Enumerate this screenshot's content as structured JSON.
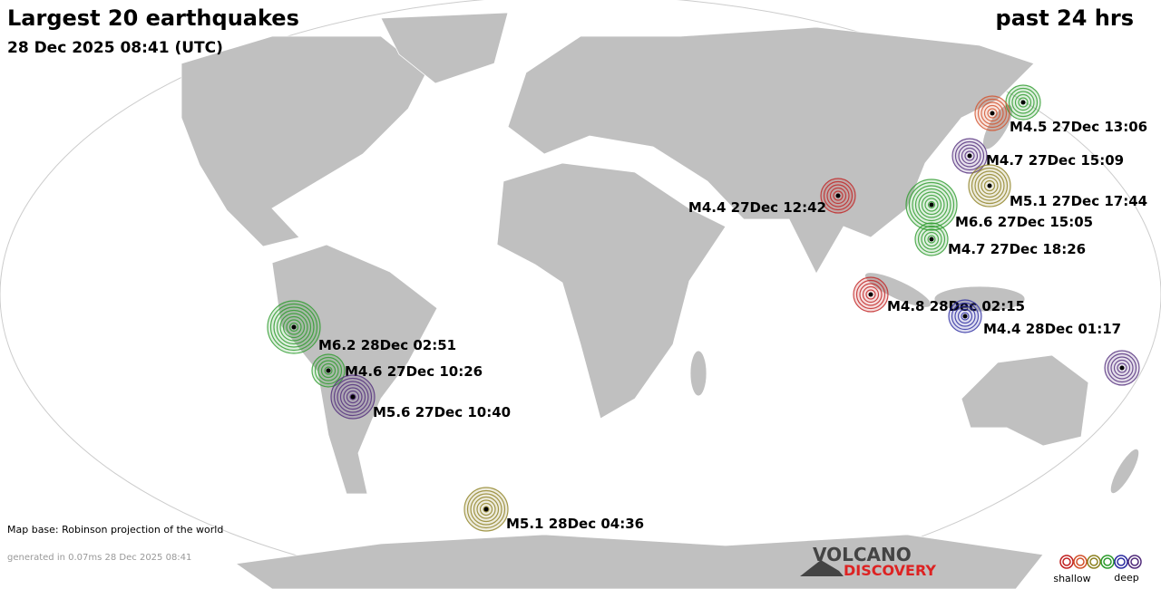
{
  "header": {
    "title": "Largest 20 earthquakes",
    "time": "28 Dec 2025 08:41 (UTC)",
    "period": "past 24 hrs"
  },
  "quakes": [
    {
      "label": "M4.5 27Dec 13:06"
    },
    {
      "label": "M4.7 27Dec 15:09"
    },
    {
      "label": "M5.1 27Dec 17:44"
    },
    {
      "label": "M6.6 27Dec 15:05"
    },
    {
      "label": "M4.7 27Dec 18:26"
    },
    {
      "label": "M4.4 27Dec 12:42"
    },
    {
      "label": "M4.8 28Dec 02:15"
    },
    {
      "label": "M4.4 28Dec 01:17"
    },
    {
      "label": "M6.2 28Dec 02:51"
    },
    {
      "label": "M4.6 27Dec 10:26"
    },
    {
      "label": "M5.6 27Dec 10:40"
    },
    {
      "label": "M5.1 28Dec 04:36"
    }
  ],
  "footer": {
    "map_base": "Map base: Robinson projection of the world",
    "generated": "generated in 0.07ms 28 Dec 2025 08:41"
  },
  "logo": {
    "line1": "VOLCANO",
    "line2": "DISCOVERY"
  },
  "legend": {
    "shallow": "shallow",
    "deep": "deep"
  }
}
